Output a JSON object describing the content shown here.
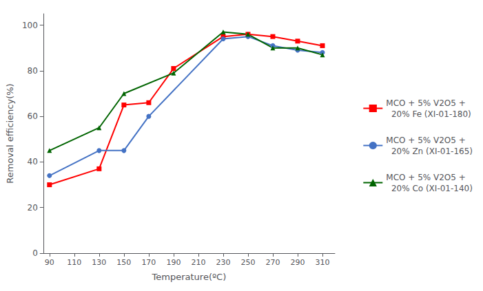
{
  "chart_data": {
    "type": "line",
    "xlabel": "Temperature(ºC)",
    "ylabel": "Removal efficiency(%)",
    "xlim": [
      85,
      320
    ],
    "xticks": [
      90,
      110,
      130,
      150,
      170,
      190,
      210,
      230,
      250,
      270,
      290,
      310
    ],
    "ylim": [
      0,
      105
    ],
    "yticks": [
      0,
      20,
      40,
      60,
      80,
      100
    ],
    "grid": false,
    "legend": "right",
    "series": [
      {
        "name": "MCO + 5% V2O5 +\n  20% Fe (XI-01-180)",
        "color": "#ff0000",
        "marker": "square",
        "x": [
          90,
          130,
          150,
          170,
          190,
          230,
          250,
          270,
          290,
          310
        ],
        "values": [
          30,
          37,
          65,
          66,
          81,
          95,
          96,
          95,
          93,
          91
        ]
      },
      {
        "name": "MCO + 5% V2O5 +\n  20% Zn (XI-01-165)",
        "color": "#4472c4",
        "marker": "circle",
        "x": [
          90,
          130,
          150,
          170,
          230,
          250,
          270,
          290,
          310
        ],
        "values": [
          34,
          45,
          45,
          60,
          94,
          95,
          91,
          89,
          88
        ]
      },
      {
        "name": "MCO + 5% V2O5 +\n  20% Co (XI-01-140)",
        "color": "#006400",
        "marker": "triangle",
        "x": [
          90,
          130,
          150,
          190,
          230,
          250,
          270,
          290,
          310
        ],
        "values": [
          45,
          55,
          70,
          79,
          97,
          96,
          90,
          90,
          87
        ]
      }
    ]
  }
}
